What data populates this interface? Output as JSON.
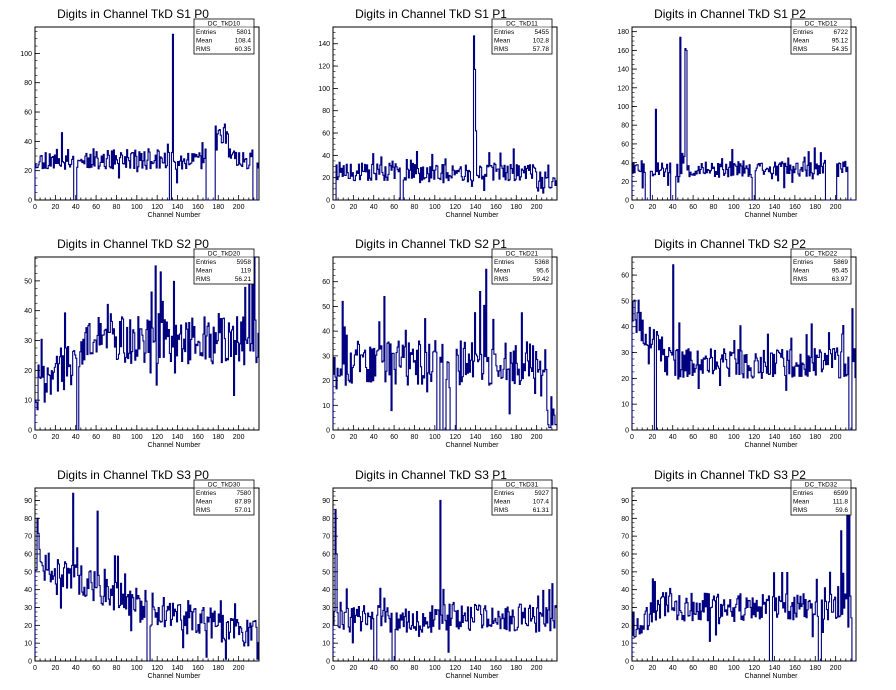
{
  "chart_data": [
    {
      "type": "histogram",
      "title": "Digits in Channel TkD S1 P0",
      "xlabel": "Channel Number",
      "ylabel": "",
      "xlim": [
        0,
        220
      ],
      "ylim": [
        0,
        118
      ],
      "xticks": [
        0,
        20,
        40,
        60,
        80,
        100,
        120,
        140,
        160,
        180,
        200
      ],
      "yticks": [
        0,
        20,
        40,
        60,
        80,
        100
      ],
      "stats": {
        "name": "DC_TkD10",
        "entries": "5801",
        "mean": "108.4",
        "rms": "60.35"
      },
      "spikes": [
        [
          135,
          113
        ]
      ],
      "base": 28,
      "noise": 7,
      "seed": 11,
      "gaps": [
        [
          38,
          40
        ],
        [
          132,
          133
        ],
        [
          168,
          176
        ],
        [
          214,
          217
        ]
      ],
      "tail": [
        [
          170,
          190,
          45
        ]
      ]
    },
    {
      "type": "histogram",
      "title": "Digits in Channel TkD S1 P1",
      "xlabel": "Channel Number",
      "ylabel": "",
      "xlim": [
        0,
        220
      ],
      "ylim": [
        0,
        155
      ],
      "xticks": [
        0,
        20,
        40,
        60,
        80,
        100,
        120,
        140,
        160,
        180,
        200
      ],
      "yticks": [
        0,
        20,
        40,
        60,
        80,
        100,
        120,
        140
      ],
      "stats": {
        "name": "DC_TkD11",
        "entries": "5455",
        "mean": "102.8",
        "rms": "57.78"
      },
      "spikes": [
        [
          138,
          147
        ],
        [
          139,
          117
        ],
        [
          140,
          62
        ]
      ],
      "base": 25,
      "noise": 8,
      "seed": 23,
      "gaps": [
        [
          0,
          2
        ],
        [
          66,
          68
        ]
      ],
      "tail": [
        [
          200,
          220,
          14
        ]
      ]
    },
    {
      "type": "histogram",
      "title": "Digits in Channel TkD S1 P2",
      "xlabel": "Channel Number",
      "ylabel": "",
      "xlim": [
        0,
        220
      ],
      "ylim": [
        0,
        185
      ],
      "xticks": [
        0,
        20,
        40,
        60,
        80,
        100,
        120,
        140,
        160,
        180,
        200
      ],
      "yticks": [
        0,
        20,
        40,
        60,
        80,
        100,
        120,
        140,
        160,
        180
      ],
      "stats": {
        "name": "DC_TkD12",
        "entries": "6722",
        "mean": "95.12",
        "rms": "54.35"
      },
      "spikes": [
        [
          23,
          97
        ],
        [
          47,
          174
        ],
        [
          52,
          162
        ],
        [
          53,
          160
        ]
      ],
      "base": 33,
      "noise": 9,
      "seed": 37,
      "gaps": [
        [
          13,
          17
        ],
        [
          38,
          42
        ],
        [
          118,
          120
        ],
        [
          190,
          200
        ],
        [
          212,
          220
        ]
      ],
      "tail": []
    },
    {
      "type": "histogram",
      "title": "Digits in Channel TkD S2 P0",
      "xlabel": "Channel Number",
      "ylabel": "",
      "xlim": [
        0,
        220
      ],
      "ylim": [
        0,
        58
      ],
      "xticks": [
        0,
        20,
        40,
        60,
        80,
        100,
        120,
        140,
        160,
        180,
        200
      ],
      "yticks": [
        0,
        10,
        20,
        30,
        40,
        50
      ],
      "stats": {
        "name": "DC_TkD20",
        "entries": "5958",
        "mean": "119",
        "rms": "56.21"
      },
      "spikes": [
        [
          118,
          55
        ],
        [
          123,
          53
        ],
        [
          210,
          50
        ],
        [
          213,
          55
        ],
        [
          215,
          58
        ]
      ],
      "base": 30,
      "noise": 8,
      "seed": 41,
      "gaps": [
        [
          41,
          42
        ]
      ],
      "tail": [],
      "ramp": [
        [
          0,
          80,
          14,
          35
        ]
      ]
    },
    {
      "type": "histogram",
      "title": "Digits in Channel TkD S2 P1",
      "xlabel": "Channel Number",
      "ylabel": "",
      "xlim": [
        0,
        220
      ],
      "ylim": [
        0,
        70
      ],
      "xticks": [
        0,
        20,
        40,
        60,
        80,
        100,
        120,
        140,
        160,
        180,
        200
      ],
      "yticks": [
        0,
        10,
        20,
        30,
        40,
        50,
        60
      ],
      "stats": {
        "name": "DC_TkD21",
        "entries": "5368",
        "mean": "95.6",
        "rms": "59.42"
      },
      "spikes": [
        [
          9,
          52
        ],
        [
          50,
          54
        ],
        [
          144,
          56
        ],
        [
          150,
          65
        ]
      ],
      "base": 27,
      "noise": 9,
      "seed": 53,
      "gaps": [
        [
          102,
          104
        ],
        [
          108,
          110
        ],
        [
          115,
          120
        ]
      ],
      "tail": [
        [
          210,
          220,
          6
        ]
      ]
    },
    {
      "type": "histogram",
      "title": "Digits in Channel TkD S2 P2",
      "xlabel": "Channel Number",
      "ylabel": "",
      "xlim": [
        0,
        220
      ],
      "ylim": [
        0,
        67
      ],
      "xticks": [
        0,
        20,
        40,
        60,
        80,
        100,
        120,
        140,
        160,
        180,
        200
      ],
      "yticks": [
        0,
        10,
        20,
        30,
        40,
        50,
        60
      ],
      "stats": {
        "name": "DC_TkD22",
        "entries": "5869",
        "mean": "95.45",
        "rms": "63.97"
      },
      "spikes": [
        [
          40,
          64
        ],
        [
          216,
          47
        ]
      ],
      "base": 26,
      "noise": 6,
      "seed": 67,
      "gaps": [
        [
          22,
          23
        ],
        [
          213,
          215
        ]
      ],
      "tail": [],
      "ramp": [
        [
          0,
          30,
          45,
          30
        ]
      ]
    },
    {
      "type": "histogram",
      "title": "Digits in Channel TkD S3 P0",
      "xlabel": "Channel Number",
      "ylabel": "",
      "xlim": [
        0,
        220
      ],
      "ylim": [
        0,
        97
      ],
      "xticks": [
        0,
        20,
        40,
        60,
        80,
        100,
        120,
        140,
        160,
        180,
        200
      ],
      "yticks": [
        0,
        10,
        20,
        30,
        40,
        50,
        60,
        70,
        80,
        90
      ],
      "stats": {
        "name": "DC_TkD30",
        "entries": "7580",
        "mean": "87.89",
        "rms": "57.01"
      },
      "spikes": [
        [
          2,
          80
        ],
        [
          37,
          94
        ],
        [
          61,
          84
        ]
      ],
      "base": 28,
      "noise": 9,
      "seed": 71,
      "gaps": [
        [
          110,
          112
        ]
      ],
      "tail": [],
      "ramp": [
        [
          0,
          100,
          55,
          32
        ],
        [
          100,
          220,
          30,
          15
        ]
      ]
    },
    {
      "type": "histogram",
      "title": "Digits in Channel TkD S3 P1",
      "xlabel": "Channel Number",
      "ylabel": "",
      "xlim": [
        0,
        220
      ],
      "ylim": [
        0,
        97
      ],
      "xticks": [
        0,
        20,
        40,
        60,
        80,
        100,
        120,
        140,
        160,
        180,
        200
      ],
      "yticks": [
        0,
        10,
        20,
        30,
        40,
        50,
        60,
        70,
        80,
        90
      ],
      "stats": {
        "name": "DC_TkD31",
        "entries": "5927",
        "mean": "107.4",
        "rms": "61.31"
      },
      "spikes": [
        [
          2,
          85
        ],
        [
          3,
          60
        ],
        [
          105,
          90
        ],
        [
          212,
          40
        ]
      ],
      "base": 24,
      "noise": 8,
      "seed": 83,
      "gaps": [
        [
          40,
          42
        ],
        [
          58,
          60
        ]
      ],
      "tail": []
    },
    {
      "type": "histogram",
      "title": "Digits in Channel TkD S3 P2",
      "xlabel": "Channel Number",
      "ylabel": "",
      "xlim": [
        0,
        220
      ],
      "ylim": [
        0,
        97
      ],
      "xticks": [
        0,
        20,
        40,
        60,
        80,
        100,
        120,
        140,
        160,
        180,
        200
      ],
      "yticks": [
        0,
        10,
        20,
        30,
        40,
        50,
        60,
        70,
        80,
        90
      ],
      "stats": {
        "name": "DC_TkD32",
        "entries": "6599",
        "mean": "111.8",
        "rms": "59.6"
      },
      "spikes": [
        [
          205,
          73
        ],
        [
          211,
          85
        ],
        [
          213,
          96
        ]
      ],
      "base": 30,
      "noise": 8,
      "seed": 97,
      "gaps": [
        [
          135,
          137
        ],
        [
          183,
          185
        ],
        [
          216,
          220
        ]
      ],
      "tail": [],
      "ramp": [
        [
          0,
          40,
          18,
          35
        ]
      ]
    }
  ],
  "labels": {
    "entries": "Entries",
    "mean": "Mean",
    "rms": "RMS"
  },
  "colors": {
    "line": "#000080",
    "axis": "#000000",
    "background": "#ffffff"
  }
}
